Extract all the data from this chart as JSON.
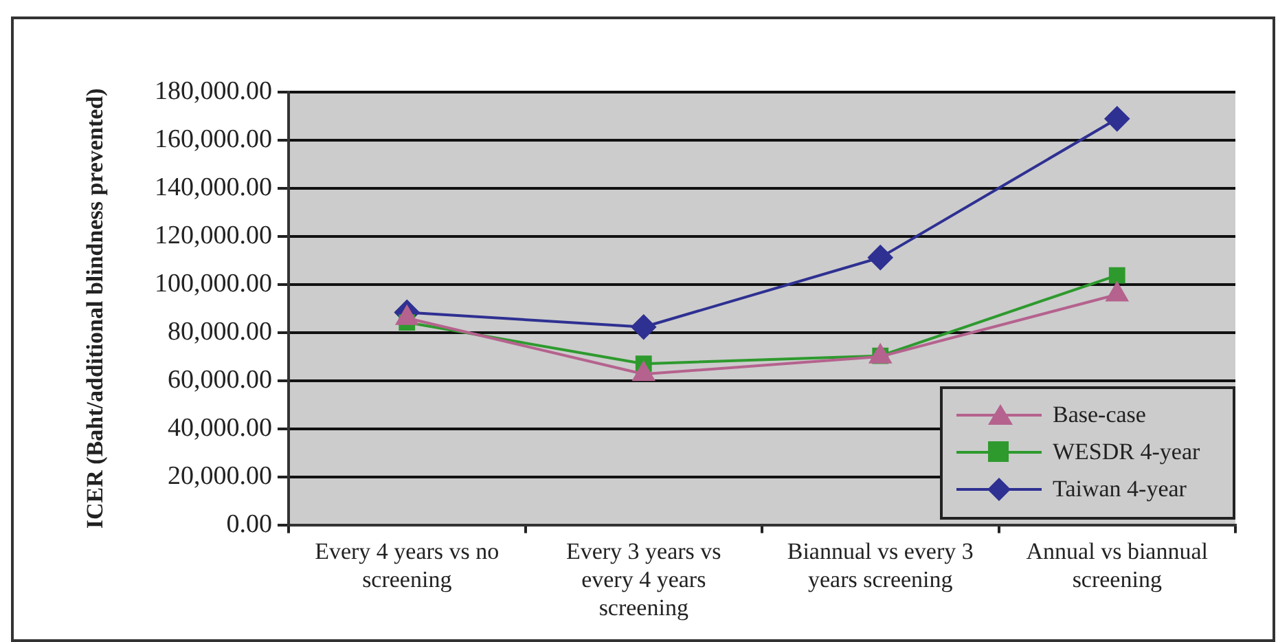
{
  "chart_data": {
    "type": "line",
    "ylabel": "ICER (Baht/additional blindness prevented)",
    "categories": [
      "Every 4 years vs no screening",
      "Every 3 years vs every 4 years screening",
      "Biannual vs every 3 years screening",
      "Annual vs biannual screening"
    ],
    "series": [
      {
        "name": "Base-case",
        "color": "#b5628e",
        "marker": "triangle",
        "values": [
          86000,
          62700,
          70000,
          95800
        ]
      },
      {
        "name": "WESDR 4-year",
        "color": "#2e9a2e",
        "marker": "square",
        "values": [
          84200,
          67000,
          70300,
          103800
        ]
      },
      {
        "name": "Taiwan 4-year",
        "color": "#2e3092",
        "marker": "diamond",
        "values": [
          88400,
          82300,
          111200,
          168900
        ]
      }
    ],
    "ylim": [
      0,
      180000
    ],
    "yticks": [
      {
        "value": 0,
        "label": "0.00"
      },
      {
        "value": 20000,
        "label": "20,000.00"
      },
      {
        "value": 40000,
        "label": "40,000.00"
      },
      {
        "value": 60000,
        "label": "60,000.00"
      },
      {
        "value": 80000,
        "label": "80,000.00"
      },
      {
        "value": 100000,
        "label": "100,000.00"
      },
      {
        "value": 120000,
        "label": "120,000.00"
      },
      {
        "value": 140000,
        "label": "140,000.00"
      },
      {
        "value": 160000,
        "label": "160,000.00"
      },
      {
        "value": 180000,
        "label": "180,000.00"
      }
    ],
    "grid": "y",
    "legend": "bottom right",
    "line_style": "solid"
  }
}
